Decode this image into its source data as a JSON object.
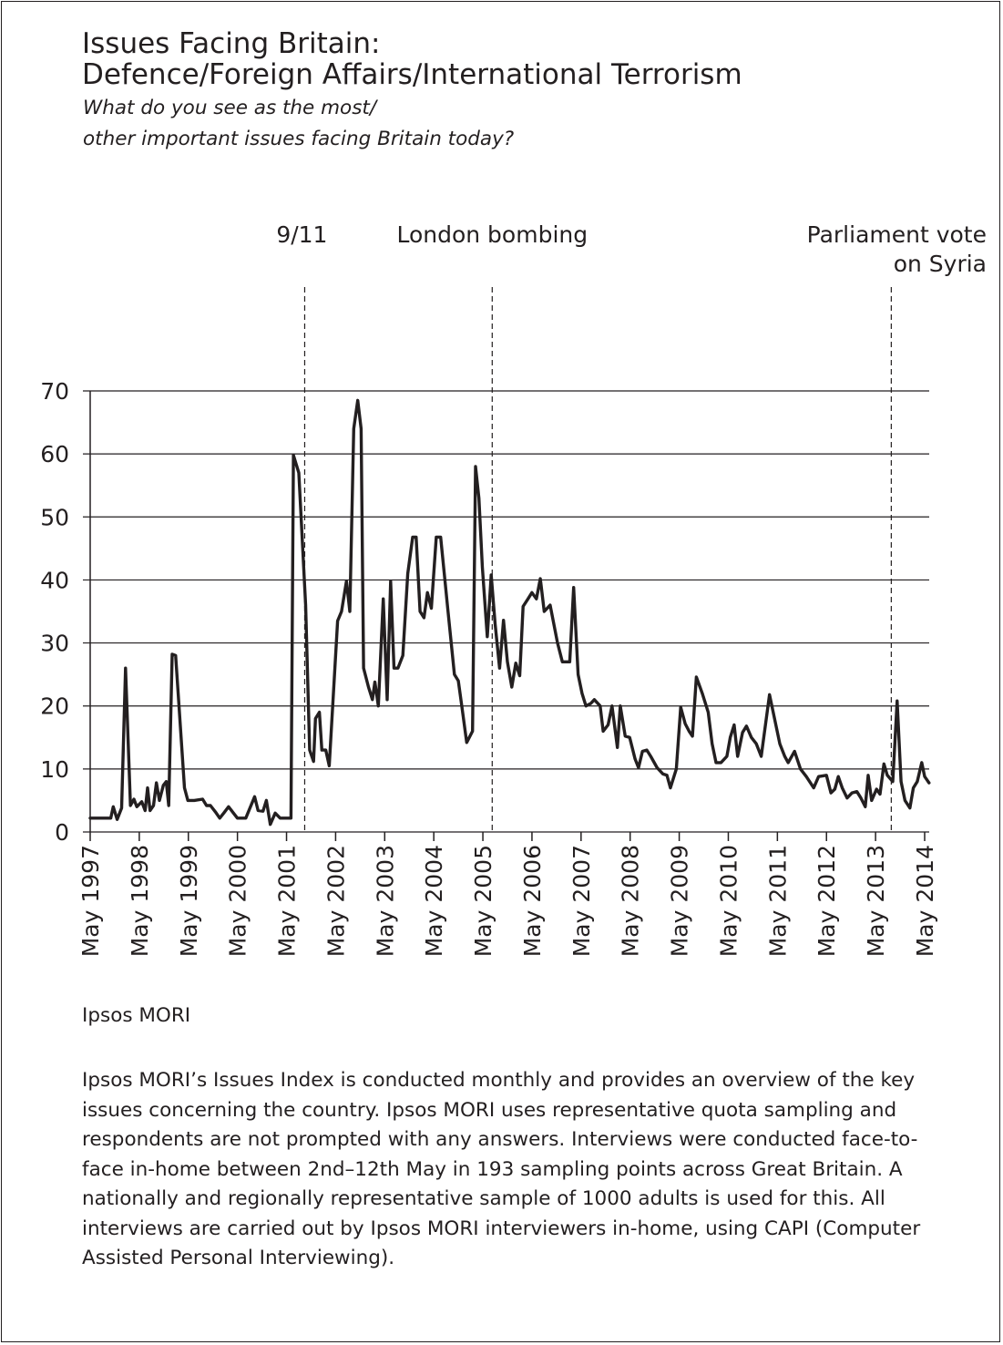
{
  "header": {
    "title_line1": "Issues Facing Britain:",
    "title_line2": "Defence/Foreign Affairs/International Terrorism",
    "subtitle_line1": "What do you see as the most/",
    "subtitle_line2": "other important issues facing Britain today?"
  },
  "footer": {
    "source": "Ipsos MORI",
    "note": "Ipsos MORI’s Issues Index is conducted monthly and provides an overview of the key issues concerning the country. Ipsos MORI uses representative quota sampling and respondents are not prompted with any answers. Interviews were conducted face-to-face in-home between 2nd–12th May in 193 sampling points across Great Britain. A nationally and regionally representative sample of 1000 adults is used for this. All interviews are carried out by Ipsos MORI interviewers in-home, using CAPI (Computer Assisted Personal Interviewing)."
  },
  "colors": {
    "line": "#231f20",
    "grid": "#231f20",
    "background": "#ffffff"
  },
  "chart_data": {
    "type": "line",
    "title": "Issues Facing Britain: Defence/Foreign Affairs/International Terrorism",
    "subtitle": "What do you see as the most/ other important issues facing Britain today?",
    "xlabel": "",
    "ylabel": "",
    "ylim": [
      0,
      70
    ],
    "yticks": [
      0,
      10,
      20,
      30,
      40,
      50,
      60,
      70
    ],
    "grid": "horizontal",
    "xlim": [
      1997.33,
      2014.33
    ],
    "xticks": [
      {
        "x": 1997.33,
        "label": "May 1997"
      },
      {
        "x": 1998.33,
        "label": "May 1998"
      },
      {
        "x": 1999.33,
        "label": "May 1999"
      },
      {
        "x": 2000.33,
        "label": "May 2000"
      },
      {
        "x": 2001.33,
        "label": "May 2001"
      },
      {
        "x": 2002.33,
        "label": "May 2002"
      },
      {
        "x": 2003.33,
        "label": "May 2003"
      },
      {
        "x": 2004.33,
        "label": "May 2004"
      },
      {
        "x": 2005.33,
        "label": "May 2005"
      },
      {
        "x": 2006.33,
        "label": "May 2006"
      },
      {
        "x": 2007.33,
        "label": "May 2007"
      },
      {
        "x": 2008.33,
        "label": "May 2008"
      },
      {
        "x": 2009.33,
        "label": "May 2009"
      },
      {
        "x": 2010.33,
        "label": "May 2010"
      },
      {
        "x": 2011.33,
        "label": "May 2011"
      },
      {
        "x": 2012.33,
        "label": "May 2012"
      },
      {
        "x": 2013.33,
        "label": "May 2013"
      },
      {
        "x": 2014.33,
        "label": "May 2014"
      }
    ],
    "annotations": [
      {
        "x": 2001.7,
        "lines": [
          "9/11"
        ],
        "align": "end"
      },
      {
        "x": 2005.52,
        "lines": [
          "London bombing"
        ],
        "align": "middle"
      },
      {
        "x": 2013.65,
        "lines": [
          "Parliament vote",
          "on Syria"
        ],
        "align": "end"
      }
    ],
    "series": [
      {
        "points": [
          [
            1997.33,
            2.2
          ],
          [
            1997.5,
            2.2
          ],
          [
            1997.67,
            2.2
          ],
          [
            1997.75,
            2.2
          ],
          [
            1997.8,
            4.0
          ],
          [
            1997.88,
            2.0
          ],
          [
            1997.97,
            3.8
          ],
          [
            1998.05,
            26.0
          ],
          [
            1998.15,
            4.2
          ],
          [
            1998.22,
            5.2
          ],
          [
            1998.28,
            4.0
          ],
          [
            1998.38,
            4.8
          ],
          [
            1998.45,
            3.4
          ],
          [
            1998.5,
            7.0
          ],
          [
            1998.55,
            3.4
          ],
          [
            1998.62,
            4.2
          ],
          [
            1998.68,
            7.8
          ],
          [
            1998.74,
            5.0
          ],
          [
            1998.82,
            7.4
          ],
          [
            1998.88,
            8.0
          ],
          [
            1998.93,
            4.2
          ],
          [
            1999.0,
            28.2
          ],
          [
            1999.07,
            28.0
          ],
          [
            1999.25,
            7.0
          ],
          [
            1999.32,
            5.0
          ],
          [
            1999.45,
            5.0
          ],
          [
            1999.62,
            5.2
          ],
          [
            1999.7,
            4.2
          ],
          [
            1999.78,
            4.2
          ],
          [
            1999.88,
            3.2
          ],
          [
            1999.97,
            2.2
          ],
          [
            2000.05,
            3.0
          ],
          [
            2000.15,
            4.0
          ],
          [
            2000.25,
            3.0
          ],
          [
            2000.33,
            2.2
          ],
          [
            2000.5,
            2.2
          ],
          [
            2000.68,
            5.6
          ],
          [
            2000.75,
            3.4
          ],
          [
            2000.85,
            3.3
          ],
          [
            2000.92,
            5.0
          ],
          [
            2001.0,
            1.2
          ],
          [
            2001.1,
            3.0
          ],
          [
            2001.2,
            2.2
          ],
          [
            2001.28,
            2.2
          ],
          [
            2001.37,
            2.2
          ],
          [
            2001.42,
            2.2
          ],
          [
            2001.47,
            59.8
          ],
          [
            2001.58,
            57.0
          ],
          [
            2001.72,
            36.0
          ],
          [
            2001.8,
            13.0
          ],
          [
            2001.88,
            11.2
          ],
          [
            2001.92,
            18.0
          ],
          [
            2002.0,
            19.0
          ],
          [
            2002.05,
            13.0
          ],
          [
            2002.13,
            13.0
          ],
          [
            2002.2,
            10.5
          ],
          [
            2002.37,
            33.5
          ],
          [
            2002.45,
            35.0
          ],
          [
            2002.55,
            39.8
          ],
          [
            2002.62,
            35.0
          ],
          [
            2002.7,
            64.0
          ],
          [
            2002.78,
            68.5
          ],
          [
            2002.85,
            64.0
          ],
          [
            2002.9,
            26.0
          ],
          [
            2003.0,
            23.0
          ],
          [
            2003.08,
            21.0
          ],
          [
            2003.13,
            23.8
          ],
          [
            2003.2,
            20.0
          ],
          [
            2003.3,
            37.0
          ],
          [
            2003.38,
            21.0
          ],
          [
            2003.45,
            39.8
          ],
          [
            2003.52,
            26.0
          ],
          [
            2003.6,
            26.0
          ],
          [
            2003.7,
            28.0
          ],
          [
            2003.8,
            41.0
          ],
          [
            2003.9,
            46.8
          ],
          [
            2003.97,
            46.8
          ],
          [
            2004.05,
            35.0
          ],
          [
            2004.13,
            34.0
          ],
          [
            2004.2,
            38.0
          ],
          [
            2004.28,
            35.5
          ],
          [
            2004.38,
            46.8
          ],
          [
            2004.47,
            46.8
          ],
          [
            2004.62,
            35.0
          ],
          [
            2004.75,
            25.0
          ],
          [
            2004.83,
            24.0
          ],
          [
            2004.9,
            20.0
          ],
          [
            2005.0,
            14.2
          ],
          [
            2005.12,
            16.0
          ],
          [
            2005.18,
            58.0
          ],
          [
            2005.25,
            53.0
          ],
          [
            2005.32,
            42.0
          ],
          [
            2005.42,
            31.0
          ],
          [
            2005.5,
            40.8
          ],
          [
            2005.58,
            33.0
          ],
          [
            2005.67,
            26.0
          ],
          [
            2005.75,
            33.6
          ],
          [
            2005.83,
            27.0
          ],
          [
            2005.92,
            23.0
          ],
          [
            2006.0,
            26.8
          ],
          [
            2006.08,
            24.8
          ],
          [
            2006.15,
            35.8
          ],
          [
            2006.25,
            37.0
          ],
          [
            2006.33,
            38.0
          ],
          [
            2006.42,
            37.0
          ],
          [
            2006.5,
            40.2
          ],
          [
            2006.58,
            35.0
          ],
          [
            2006.7,
            36.0
          ],
          [
            2006.85,
            30.0
          ],
          [
            2006.95,
            27.0
          ],
          [
            2007.1,
            27.0
          ],
          [
            2007.18,
            38.8
          ],
          [
            2007.27,
            25.0
          ],
          [
            2007.35,
            22.0
          ],
          [
            2007.43,
            20.0
          ],
          [
            2007.53,
            20.4
          ],
          [
            2007.6,
            21.0
          ],
          [
            2007.72,
            20.0
          ],
          [
            2007.78,
            16.0
          ],
          [
            2007.88,
            17.0
          ],
          [
            2007.96,
            20.0
          ],
          [
            2008.07,
            13.4
          ],
          [
            2008.13,
            20.0
          ],
          [
            2008.23,
            15.2
          ],
          [
            2008.32,
            15.0
          ],
          [
            2008.43,
            11.6
          ],
          [
            2008.5,
            10.2
          ],
          [
            2008.58,
            12.8
          ],
          [
            2008.67,
            13.0
          ],
          [
            2008.75,
            12.0
          ],
          [
            2008.88,
            10.2
          ],
          [
            2009.0,
            9.2
          ],
          [
            2009.08,
            9.0
          ],
          [
            2009.15,
            7.0
          ],
          [
            2009.27,
            10.0
          ],
          [
            2009.36,
            19.8
          ],
          [
            2009.45,
            17.2
          ],
          [
            2009.53,
            16.0
          ],
          [
            2009.6,
            15.2
          ],
          [
            2009.68,
            24.6
          ],
          [
            2009.8,
            22.0
          ],
          [
            2009.92,
            19.0
          ],
          [
            2010.0,
            14.0
          ],
          [
            2010.08,
            11.0
          ],
          [
            2010.18,
            11.0
          ],
          [
            2010.3,
            12.0
          ],
          [
            2010.37,
            15.0
          ],
          [
            2010.45,
            17.0
          ],
          [
            2010.52,
            12.0
          ],
          [
            2010.62,
            15.8
          ],
          [
            2010.7,
            16.8
          ],
          [
            2010.8,
            15.0
          ],
          [
            2010.9,
            14.0
          ],
          [
            2011.0,
            12.0
          ],
          [
            2011.17,
            21.8
          ],
          [
            2011.38,
            14.0
          ],
          [
            2011.48,
            12.0
          ],
          [
            2011.55,
            11.0
          ],
          [
            2011.68,
            12.8
          ],
          [
            2011.8,
            10.0
          ],
          [
            2011.92,
            8.8
          ],
          [
            2012.07,
            7.0
          ],
          [
            2012.17,
            8.8
          ],
          [
            2012.33,
            9.0
          ],
          [
            2012.42,
            6.2
          ],
          [
            2012.5,
            6.8
          ],
          [
            2012.57,
            8.8
          ],
          [
            2012.65,
            7.0
          ],
          [
            2012.75,
            5.4
          ],
          [
            2012.85,
            6.2
          ],
          [
            2012.95,
            6.4
          ],
          [
            2013.03,
            5.4
          ],
          [
            2013.12,
            4.0
          ],
          [
            2013.18,
            9.0
          ],
          [
            2013.25,
            5.0
          ],
          [
            2013.35,
            6.8
          ],
          [
            2013.42,
            6.0
          ],
          [
            2013.5,
            10.8
          ],
          [
            2013.57,
            9.0
          ],
          [
            2013.68,
            8.0
          ],
          [
            2013.77,
            20.8
          ],
          [
            2013.85,
            8.0
          ],
          [
            2013.93,
            5.0
          ],
          [
            2014.03,
            3.8
          ],
          [
            2014.1,
            7.0
          ],
          [
            2014.18,
            8.0
          ],
          [
            2014.27,
            11.0
          ],
          [
            2014.33,
            8.8
          ],
          [
            2014.42,
            7.8
          ]
        ]
      }
    ]
  }
}
